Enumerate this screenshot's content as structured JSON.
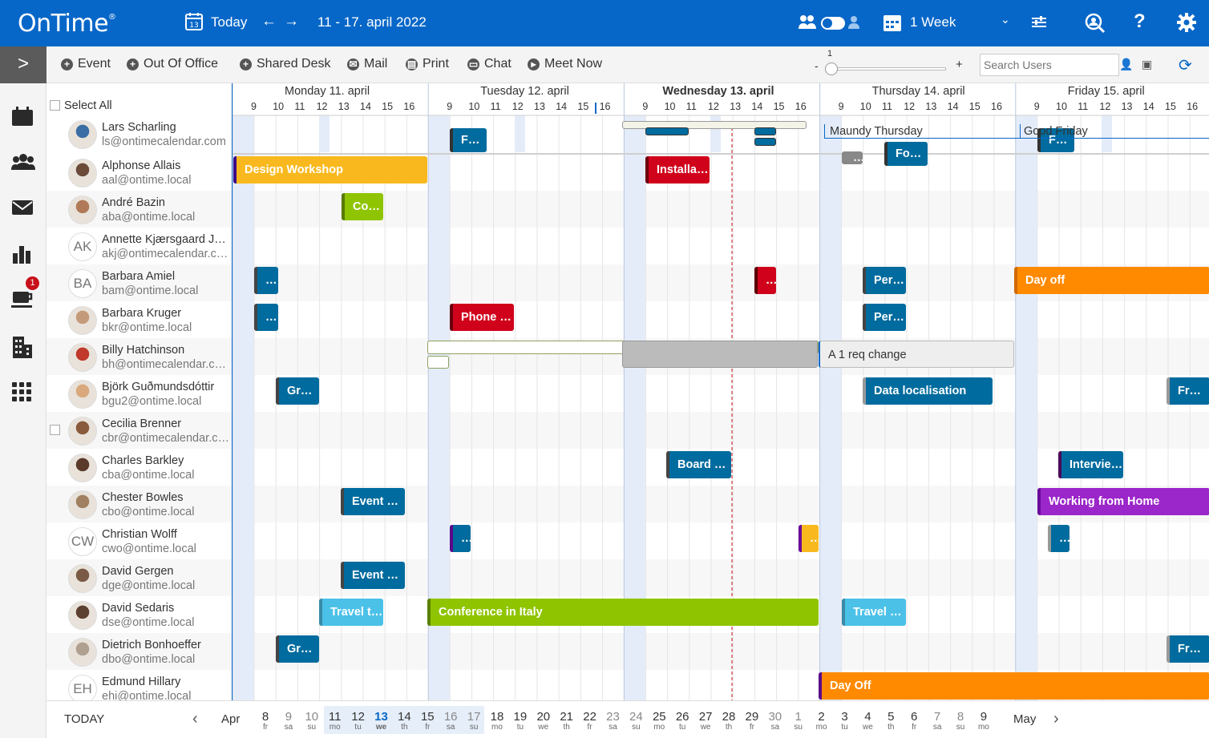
{
  "header": {
    "logo": "OnTime",
    "logo_mark": "®",
    "today_label": "Today",
    "date_range": "11  -  17. april 2022",
    "view_label": "1 Week",
    "colors": {
      "bar": "#0767c8"
    }
  },
  "toolbar": {
    "items": [
      "Event",
      "Out Of Office",
      "Shared Desk",
      "Mail",
      "Print",
      "Chat",
      "Meet Now"
    ],
    "slider_value": "1",
    "slider_minus": "-",
    "slider_plus": "+",
    "search_placeholder": "Search Users"
  },
  "sidebar": {
    "badge": "1",
    "icons": [
      "calendar-icon",
      "group-icon",
      "mail-icon",
      "stats-icon",
      "coffee-icon",
      "building-icon",
      "apps-icon"
    ]
  },
  "calendar": {
    "select_all": "Select All",
    "days": [
      "Monday 11. april",
      "Tuesday 12. april",
      "Wednesday 13. april",
      "Thursday 14. april",
      "Friday 15. april"
    ],
    "hours": [
      "9",
      "10",
      "11",
      "12",
      "13",
      "14",
      "15",
      "16"
    ],
    "holidays": [
      "Maundy Thursday",
      "Good Friday"
    ]
  },
  "users": [
    {
      "name": "Lars Scharling",
      "email": "ls@ontimecalendar.com",
      "initials": ""
    },
    {
      "name": "Alphonse Allais",
      "email": "aal@ontime.local",
      "initials": ""
    },
    {
      "name": "André Bazin",
      "email": "aba@ontime.local",
      "initials": ""
    },
    {
      "name": "Annette Kjærsgaard Jø…",
      "email": "akj@ontimecalendar.c…",
      "initials": "AK"
    },
    {
      "name": "Barbara Amiel",
      "email": "bam@ontime.local",
      "initials": "BA"
    },
    {
      "name": "Barbara Kruger",
      "email": "bkr@ontime.local",
      "initials": ""
    },
    {
      "name": "Billy Hatchinson",
      "email": "bh@ontimecalendar.c…",
      "initials": ""
    },
    {
      "name": "Björk Guðmundsdóttir",
      "email": "bgu2@ontime.local",
      "initials": ""
    },
    {
      "name": "Cecilia Brenner",
      "email": "cbr@ontimecalendar.c…",
      "initials": ""
    },
    {
      "name": "Charles Barkley",
      "email": "cba@ontime.local",
      "initials": ""
    },
    {
      "name": "Chester Bowles",
      "email": "cbo@ontime.local",
      "initials": ""
    },
    {
      "name": "Christian Wolff",
      "email": "cwo@ontime.local",
      "initials": "CW"
    },
    {
      "name": "David Gergen",
      "email": "dge@ontime.local",
      "initials": ""
    },
    {
      "name": "David Sedaris",
      "email": "dse@ontime.local",
      "initials": ""
    },
    {
      "name": "Dietrich Bonhoeffer",
      "email": "dbo@ontime.local",
      "initials": ""
    },
    {
      "name": "Edmund Hillary",
      "email": "ehi@ontime.local",
      "initials": "EH"
    }
  ],
  "events": [
    {
      "label": "Foc…",
      "color": "#006b9e"
    },
    {
      "label": "Foc…",
      "color": "#006b9e"
    },
    {
      "label": "…",
      "color": "#888888"
    },
    {
      "label": "Foc…",
      "color": "#006b9e"
    },
    {
      "label": "Design Workshop",
      "color": "#f9b91e"
    },
    {
      "label": "Installati…",
      "color": "#d0021b"
    },
    {
      "label": "Con…",
      "color": "#8fc400"
    },
    {
      "label": "…",
      "color": "#006b9e"
    },
    {
      "label": "…",
      "color": "#d0021b"
    },
    {
      "label": "Perf…",
      "color": "#006b9e"
    },
    {
      "label": "Day off",
      "color": "#ff8a00"
    },
    {
      "label": "…",
      "color": "#006b9e"
    },
    {
      "label": "Phone c…",
      "color": "#d0021b"
    },
    {
      "label": "Perf…",
      "color": "#006b9e"
    },
    {
      "label": "A 1 req change",
      "color": "#eeeeee"
    },
    {
      "label": "Gro…",
      "color": "#006b9e"
    },
    {
      "label": "Data localisation",
      "color": "#006b9e"
    },
    {
      "label": "Fr…",
      "color": "#006b9e"
    },
    {
      "label": "Board M…",
      "color": "#006b9e"
    },
    {
      "label": "Intervie…",
      "color": "#006b9e"
    },
    {
      "label": "Event co…",
      "color": "#006b9e"
    },
    {
      "label": "Working from Home",
      "color": "#9b26c9"
    },
    {
      "label": "…",
      "color": "#006b9e"
    },
    {
      "label": "…",
      "color": "#f9b91e"
    },
    {
      "label": "…",
      "color": "#006b9e"
    },
    {
      "label": "Event co…",
      "color": "#006b9e"
    },
    {
      "label": "Travel to…",
      "color": "#4bc1e8"
    },
    {
      "label": "Conference in Italy",
      "color": "#8fc400"
    },
    {
      "label": "Travel b…",
      "color": "#4bc1e8"
    },
    {
      "label": "Gro…",
      "color": "#006b9e"
    },
    {
      "label": "Fr…",
      "color": "#006b9e"
    },
    {
      "label": "Day Off",
      "color": "#ff8a00"
    }
  ],
  "footer": {
    "today": "TODAY",
    "month_start": "Apr",
    "month_end": "May",
    "days": [
      [
        "8",
        "fr"
      ],
      [
        "9",
        "sa"
      ],
      [
        "10",
        "su"
      ],
      [
        "11",
        "mo"
      ],
      [
        "12",
        "tu"
      ],
      [
        "13",
        "we"
      ],
      [
        "14",
        "th"
      ],
      [
        "15",
        "fr"
      ],
      [
        "16",
        "sa"
      ],
      [
        "17",
        "su"
      ],
      [
        "18",
        "mo"
      ],
      [
        "19",
        "tu"
      ],
      [
        "20",
        "we"
      ],
      [
        "21",
        "th"
      ],
      [
        "22",
        "fr"
      ],
      [
        "23",
        "sa"
      ],
      [
        "24",
        "su"
      ],
      [
        "25",
        "mo"
      ],
      [
        "26",
        "tu"
      ],
      [
        "27",
        "we"
      ],
      [
        "28",
        "th"
      ],
      [
        "29",
        "fr"
      ],
      [
        "30",
        "sa"
      ],
      [
        "1",
        "su"
      ],
      [
        "2",
        "mo"
      ],
      [
        "3",
        "tu"
      ],
      [
        "4",
        "we"
      ],
      [
        "5",
        "th"
      ],
      [
        "6",
        "fr"
      ],
      [
        "7",
        "sa"
      ],
      [
        "8",
        "su"
      ],
      [
        "9",
        "mo"
      ]
    ]
  }
}
